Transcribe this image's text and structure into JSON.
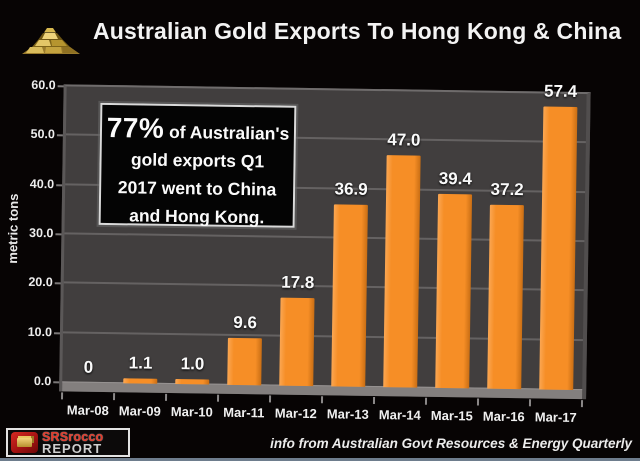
{
  "header": {
    "title": "Australian Gold Exports To Hong Kong & China",
    "icon": "gold-bars-icon"
  },
  "chart_data": {
    "type": "bar",
    "title": "Australian Gold Exports To Hong Kong & China",
    "categories": [
      "Mar-08",
      "Mar-09",
      "Mar-10",
      "Mar-11",
      "Mar-12",
      "Mar-13",
      "Mar-14",
      "Mar-15",
      "Mar-16",
      "Mar-17"
    ],
    "values": [
      0,
      1.1,
      1.0,
      9.6,
      17.8,
      36.9,
      47.0,
      39.4,
      37.2,
      57.4
    ],
    "value_labels": [
      "0",
      "1.1",
      "1.0",
      "9.6",
      "17.8",
      "36.9",
      "47.0",
      "39.4",
      "37.2",
      "57.4"
    ],
    "xlabel": "",
    "ylabel": "metric tons",
    "ylim": [
      0,
      60
    ],
    "ytick_step": 10,
    "ytick_labels": [
      "0.0",
      "10.0",
      "20.0",
      "30.0",
      "40.0",
      "50.0",
      "60.0"
    ],
    "grid": true,
    "legend": "none",
    "bar_color": "#F68E26",
    "bar_highlight": "#FBA753",
    "bar_shadow": "#C96E14",
    "wall_color": "#413E3E",
    "gridline_color": "#6E6B6B",
    "background_color": "#070404",
    "label_color": "#FAFAFA"
  },
  "annotation": {
    "lead": "77%",
    "line1_rest": " of Australian's",
    "line2": "gold exports Q1",
    "line3": "2017 went to China",
    "line4": "and Hong Kong."
  },
  "footer": {
    "logo_line1": "SRSrocco",
    "logo_line2": "REPORT",
    "source": "info from Australian Govt Resources & Energy Quarterly"
  }
}
